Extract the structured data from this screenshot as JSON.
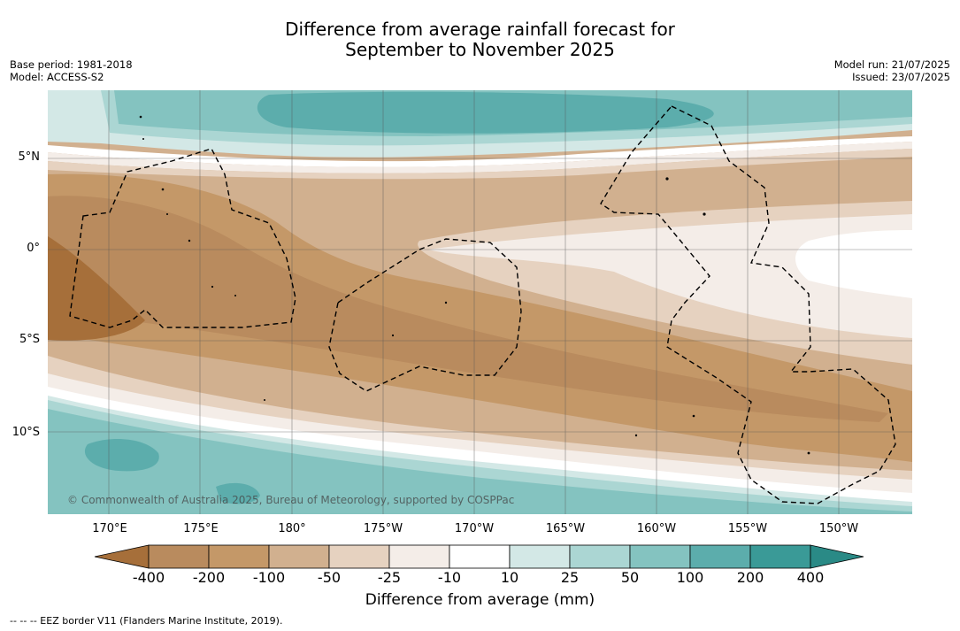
{
  "title_line1": "Difference from average rainfall forecast for",
  "title_line2": "September to November 2025",
  "meta_left": {
    "base_period": "Base period: 1981-2018",
    "model": "Model: ACCESS-S2"
  },
  "meta_right": {
    "model_run": "Model run: 21/07/2025",
    "issued": "Issued: 23/07/2025"
  },
  "credit": "© Commonwealth of Australia 2025, Bureau of Meteorology, supported by COSPPac",
  "longitude_labels": [
    "170°E",
    "175°E",
    "180°",
    "175°W",
    "170°W",
    "165°W",
    "160°W",
    "155°W",
    "150°W"
  ],
  "latitude_labels": [
    "5°N",
    "0°",
    "5°S",
    "10°S"
  ],
  "colorbar": {
    "title": "Difference from average (mm)",
    "ticks": [
      "-400",
      "-200",
      "-100",
      "-50",
      "-25",
      "-10",
      "10",
      "25",
      "50",
      "100",
      "200",
      "400"
    ],
    "colors": [
      "#a66f3a",
      "#b98b5e",
      "#c49868",
      "#d1b08f",
      "#e6d2c0",
      "#f4ede8",
      "#ffffff",
      "#d3e8e6",
      "#abd6d3",
      "#84c3c0",
      "#5cadac",
      "#3a9a97",
      "#2a8a86"
    ]
  },
  "footnote": "--  --  -- EEZ border V11 (Flanders Marine Institute, 2019)."
}
